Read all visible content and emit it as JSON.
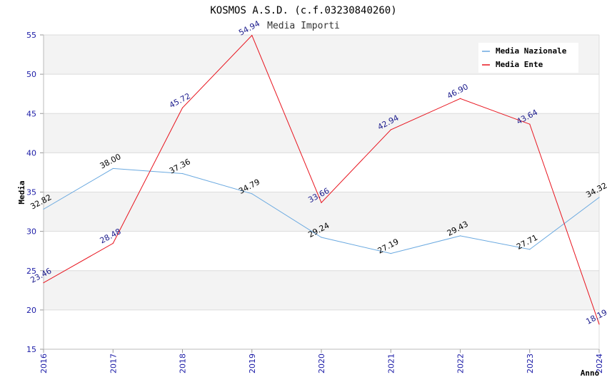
{
  "chart_data": {
    "type": "line",
    "title": "KOSMOS A.S.D. (c.f.03230840260)",
    "subtitle": "Media Importi",
    "xlabel": "Anno",
    "ylabel": "Media",
    "ylim": [
      15,
      55
    ],
    "yticks": [
      15,
      20,
      25,
      30,
      35,
      40,
      45,
      50,
      55
    ],
    "categories": [
      "2016",
      "2017",
      "2018",
      "2019",
      "2020",
      "2021",
      "2022",
      "2023",
      "2024"
    ],
    "legend_position": "top-right",
    "grid": true,
    "series": [
      {
        "name": "Media Nazionale",
        "color": "#6aa9e0",
        "label_color": "#000000",
        "values": [
          32.82,
          38.0,
          37.36,
          34.79,
          29.24,
          27.19,
          29.43,
          27.71,
          34.32
        ],
        "labels": [
          "32.82",
          "38.00",
          "37.36",
          "34.79",
          "29.24",
          "27.19",
          "29.43",
          "27.71",
          "34.32"
        ]
      },
      {
        "name": "Media Ente",
        "color": "#e8141e",
        "label_color": "#1a1a8c",
        "values": [
          23.46,
          28.48,
          45.72,
          54.94,
          33.66,
          42.94,
          46.9,
          43.64,
          18.19
        ],
        "labels": [
          "23.46",
          "28.48",
          "45.72",
          "54.94",
          "33.66",
          "42.94",
          "46.90",
          "43.64",
          "18.19"
        ]
      }
    ]
  }
}
